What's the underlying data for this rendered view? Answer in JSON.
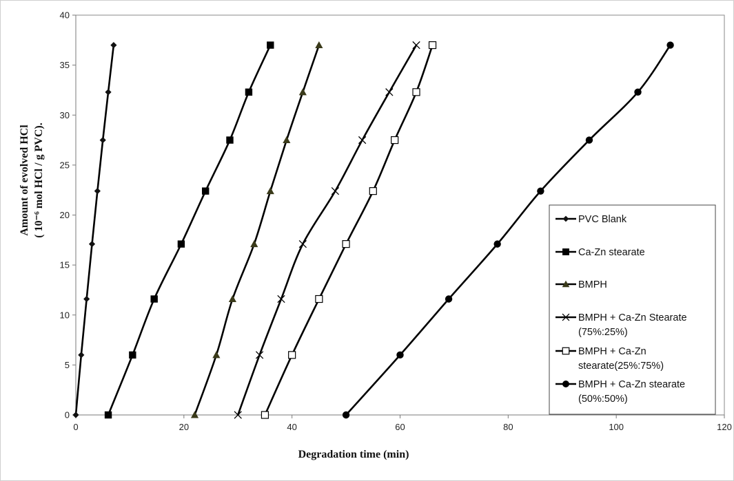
{
  "chart_data": {
    "type": "line",
    "title": "",
    "xlabel": "Degradation time (min)",
    "ylabel_line1": "Amount of evolved HCl",
    "ylabel_line2": "( 10⁻⁶ mol HCl / g PVC).",
    "xlim": [
      0,
      120
    ],
    "ylim": [
      0,
      40
    ],
    "x_ticks": [
      "0",
      "20",
      "40",
      "60",
      "80",
      "100",
      "120"
    ],
    "y_ticks": [
      "0",
      "5",
      "10",
      "15",
      "20",
      "25",
      "30",
      "35",
      "40"
    ],
    "grid": false,
    "legend_position": "right",
    "y": [
      0,
      6,
      11.6,
      17.1,
      22.4,
      27.5,
      32.3,
      37
    ],
    "series": [
      {
        "name": "PVC Blank",
        "legend_lines": [
          "PVC Blank"
        ],
        "marker": "diamond",
        "x": [
          0,
          1,
          2,
          3,
          4,
          5,
          6,
          7
        ]
      },
      {
        "name": "Ca-Zn stearate",
        "legend_lines": [
          "Ca-Zn stearate"
        ],
        "marker": "square-filled",
        "x": [
          6,
          10.5,
          14.5,
          19.5,
          24,
          28.5,
          32,
          36
        ]
      },
      {
        "name": "BMPH",
        "legend_lines": [
          "BMPH"
        ],
        "marker": "triangle",
        "x": [
          22,
          26,
          29,
          33,
          36,
          39,
          42,
          45
        ]
      },
      {
        "name": "BMPH + Ca-Zn Stearate (75%:25%)",
        "legend_lines": [
          "BMPH + Ca-Zn Stearate",
          "(75%:25%)"
        ],
        "marker": "x",
        "x": [
          30,
          34,
          38,
          42,
          48,
          53,
          58,
          63
        ]
      },
      {
        "name": "BMPH + Ca-Zn stearate(25%:75%)",
        "legend_lines": [
          "BMPH + Ca-Zn",
          "stearate(25%:75%)"
        ],
        "marker": "square-open",
        "x": [
          35,
          40,
          45,
          50,
          55,
          59,
          63,
          66
        ]
      },
      {
        "name": "BMPH + Ca-Zn stearate (50%:50%)",
        "legend_lines": [
          "BMPH + Ca-Zn stearate",
          "(50%:50%)"
        ],
        "marker": "circle",
        "x": [
          50,
          60,
          69,
          78,
          86,
          95,
          104,
          110
        ]
      }
    ]
  }
}
